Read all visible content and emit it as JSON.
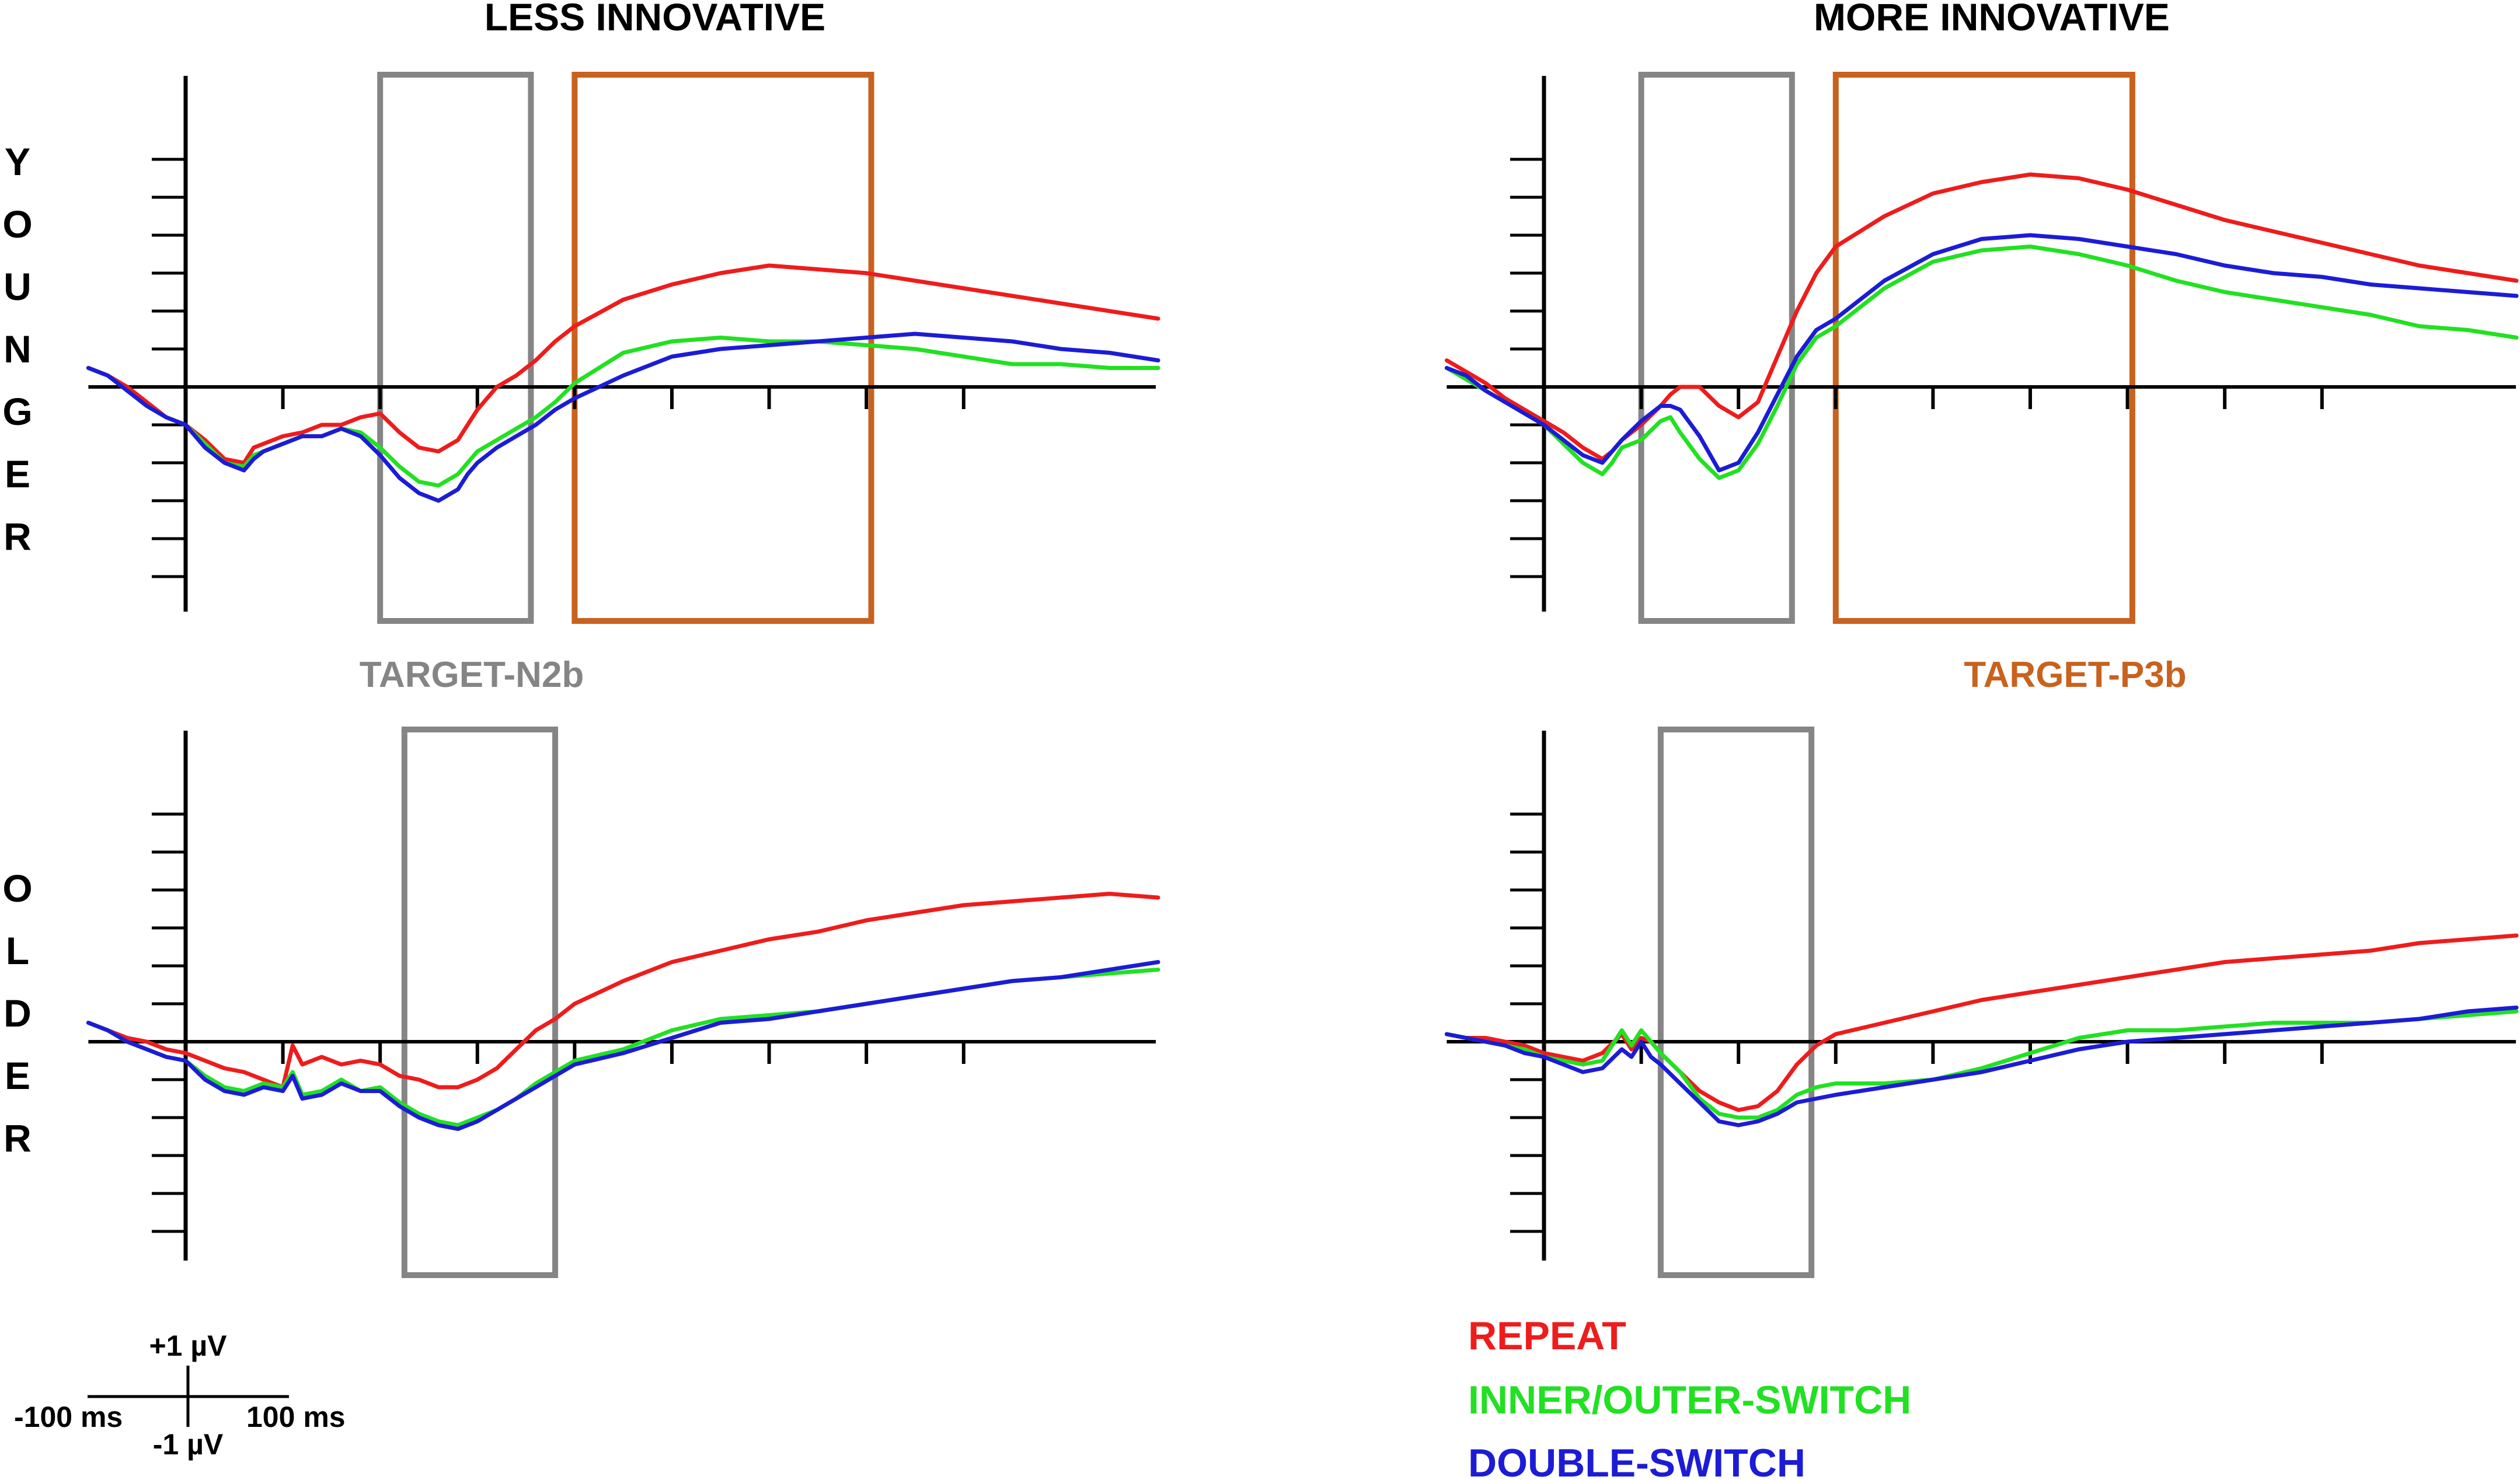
{
  "titles": {
    "left": "LESS INNOVATIVE",
    "right": "MORE INNOVATIVE"
  },
  "row_labels": {
    "younger": "YOUNGER",
    "older": "OLDER"
  },
  "window_labels": {
    "n2b": "TARGET-N2b",
    "p3b": "TARGET-P3b"
  },
  "scale_bar": {
    "top": "+1 µV",
    "bottom": "-1 µV",
    "left": "-100 ms",
    "right": "100 ms"
  },
  "colors": {
    "repeat": "#ee1c1c",
    "inner_outer": "#22e022",
    "double": "#1c1cd6",
    "n2b_box": "#858585",
    "p3b_box": "#c8621e",
    "axis": "#000000"
  },
  "chart_data": [
    {
      "type": "line",
      "panel": "younger-less-innovative",
      "xlabel": "",
      "ylabel": "",
      "x_unit": "ms",
      "y_unit": "µV",
      "xlim": [
        -100,
        1000
      ],
      "ylim": [
        -5.5,
        6.5
      ],
      "grid": false,
      "windows": [
        {
          "label": "TARGET-N2b",
          "x": [
            200,
            355
          ]
        },
        {
          "label": "TARGET-P3b",
          "x": [
            400,
            705
          ]
        }
      ],
      "x": [
        -100,
        -80,
        -60,
        -40,
        -20,
        0,
        20,
        40,
        60,
        70,
        80,
        100,
        120,
        140,
        160,
        180,
        200,
        220,
        240,
        260,
        280,
        290,
        300,
        320,
        340,
        360,
        380,
        400,
        450,
        500,
        550,
        600,
        650,
        700,
        750,
        800,
        850,
        900,
        950,
        1000
      ],
      "series": [
        {
          "name": "REPEAT",
          "values": [
            0.5,
            0.3,
            0.0,
            -0.4,
            -0.8,
            -1.0,
            -1.4,
            -1.9,
            -2.0,
            -1.6,
            -1.5,
            -1.3,
            -1.2,
            -1.0,
            -1.0,
            -0.8,
            -0.7,
            -1.2,
            -1.6,
            -1.7,
            -1.4,
            -1.0,
            -0.6,
            0.0,
            0.3,
            0.7,
            1.2,
            1.6,
            2.3,
            2.7,
            3.0,
            3.2,
            3.1,
            3.0,
            2.8,
            2.6,
            2.4,
            2.2,
            2.0,
            1.8
          ]
        },
        {
          "name": "INNER/OUTER-SWITCH",
          "values": [
            0.5,
            0.3,
            -0.1,
            -0.5,
            -0.8,
            -1.0,
            -1.5,
            -2.0,
            -2.1,
            -1.8,
            -1.7,
            -1.5,
            -1.3,
            -1.3,
            -1.1,
            -1.2,
            -1.6,
            -2.1,
            -2.5,
            -2.6,
            -2.3,
            -2.0,
            -1.7,
            -1.4,
            -1.1,
            -0.8,
            -0.4,
            0.1,
            0.9,
            1.2,
            1.3,
            1.2,
            1.2,
            1.1,
            1.0,
            0.8,
            0.6,
            0.6,
            0.5,
            0.5
          ]
        },
        {
          "name": "DOUBLE-SWITCH",
          "values": [
            0.5,
            0.3,
            -0.1,
            -0.5,
            -0.8,
            -1.0,
            -1.6,
            -2.0,
            -2.2,
            -1.9,
            -1.7,
            -1.5,
            -1.3,
            -1.3,
            -1.1,
            -1.3,
            -1.8,
            -2.4,
            -2.8,
            -3.0,
            -2.7,
            -2.3,
            -2.0,
            -1.6,
            -1.3,
            -1.0,
            -0.6,
            -0.3,
            0.3,
            0.8,
            1.0,
            1.1,
            1.2,
            1.3,
            1.4,
            1.3,
            1.2,
            1.0,
            0.9,
            0.7
          ]
        }
      ]
    },
    {
      "type": "line",
      "panel": "younger-more-innovative",
      "xlabel": "",
      "ylabel": "",
      "x_unit": "ms",
      "y_unit": "µV",
      "xlim": [
        -100,
        1000
      ],
      "ylim": [
        -5.5,
        6.5
      ],
      "grid": false,
      "windows": [
        {
          "label": "TARGET-N2b",
          "x": [
            100,
            255
          ]
        },
        {
          "label": "TARGET-P3b",
          "x": [
            300,
            605
          ]
        }
      ],
      "x": [
        -100,
        -80,
        -60,
        -40,
        -20,
        0,
        20,
        40,
        60,
        70,
        80,
        100,
        120,
        130,
        140,
        160,
        180,
        200,
        220,
        240,
        260,
        280,
        300,
        350,
        400,
        450,
        500,
        550,
        600,
        650,
        700,
        750,
        800,
        850,
        900,
        950,
        1000
      ],
      "series": [
        {
          "name": "REPEAT",
          "values": [
            0.7,
            0.4,
            0.1,
            -0.3,
            -0.6,
            -0.9,
            -1.2,
            -1.6,
            -1.9,
            -1.7,
            -1.4,
            -1.0,
            -0.5,
            -0.2,
            0.0,
            0.0,
            -0.5,
            -0.8,
            -0.4,
            0.8,
            2.0,
            3.0,
            3.7,
            4.5,
            5.1,
            5.4,
            5.6,
            5.5,
            5.2,
            4.8,
            4.4,
            4.1,
            3.8,
            3.5,
            3.2,
            3.0,
            2.8
          ]
        },
        {
          "name": "INNER/OUTER-SWITCH",
          "values": [
            0.5,
            0.2,
            -0.1,
            -0.4,
            -0.7,
            -1.0,
            -1.5,
            -2.0,
            -2.3,
            -2.0,
            -1.6,
            -1.4,
            -0.9,
            -0.8,
            -1.2,
            -1.9,
            -2.4,
            -2.2,
            -1.5,
            -0.5,
            0.6,
            1.3,
            1.6,
            2.6,
            3.3,
            3.6,
            3.7,
            3.5,
            3.2,
            2.8,
            2.5,
            2.3,
            2.1,
            1.9,
            1.6,
            1.5,
            1.3
          ]
        },
        {
          "name": "DOUBLE-SWITCH",
          "values": [
            0.5,
            0.3,
            -0.1,
            -0.4,
            -0.7,
            -1.0,
            -1.4,
            -1.8,
            -2.0,
            -1.7,
            -1.4,
            -0.9,
            -0.5,
            -0.5,
            -0.6,
            -1.3,
            -2.2,
            -2.0,
            -1.2,
            -0.2,
            0.8,
            1.5,
            1.8,
            2.8,
            3.5,
            3.9,
            4.0,
            3.9,
            3.7,
            3.5,
            3.2,
            3.0,
            2.9,
            2.7,
            2.6,
            2.5,
            2.4
          ]
        }
      ]
    },
    {
      "type": "line",
      "panel": "older-less-innovative",
      "xlabel": "",
      "ylabel": "",
      "x_unit": "ms",
      "y_unit": "µV",
      "xlim": [
        -100,
        1000
      ],
      "ylim": [
        -5.5,
        6.5
      ],
      "grid": false,
      "windows": [
        {
          "label": "TARGET-N2b",
          "x": [
            225,
            380
          ]
        }
      ],
      "x": [
        -100,
        -80,
        -60,
        -40,
        -20,
        0,
        20,
        40,
        60,
        80,
        100,
        110,
        120,
        140,
        160,
        180,
        200,
        220,
        240,
        260,
        280,
        300,
        320,
        340,
        360,
        380,
        400,
        450,
        500,
        550,
        600,
        650,
        700,
        750,
        800,
        850,
        900,
        950,
        1000
      ],
      "series": [
        {
          "name": "REPEAT",
          "values": [
            0.5,
            0.3,
            0.1,
            0.0,
            -0.2,
            -0.3,
            -0.5,
            -0.7,
            -0.8,
            -1.0,
            -1.2,
            -0.1,
            -0.6,
            -0.4,
            -0.6,
            -0.5,
            -0.6,
            -0.9,
            -1.0,
            -1.2,
            -1.2,
            -1.0,
            -0.7,
            -0.2,
            0.3,
            0.6,
            1.0,
            1.6,
            2.1,
            2.4,
            2.7,
            2.9,
            3.2,
            3.4,
            3.6,
            3.7,
            3.8,
            3.9,
            3.8
          ]
        },
        {
          "name": "INNER/OUTER-SWITCH",
          "values": [
            0.5,
            0.3,
            0.0,
            -0.2,
            -0.4,
            -0.5,
            -0.9,
            -1.2,
            -1.3,
            -1.1,
            -1.2,
            -0.8,
            -1.4,
            -1.3,
            -1.0,
            -1.3,
            -1.2,
            -1.6,
            -1.9,
            -2.1,
            -2.2,
            -2.0,
            -1.8,
            -1.5,
            -1.1,
            -0.8,
            -0.5,
            -0.2,
            0.3,
            0.6,
            0.7,
            0.8,
            1.0,
            1.2,
            1.4,
            1.6,
            1.7,
            1.8,
            1.9
          ]
        },
        {
          "name": "DOUBLE-SWITCH",
          "values": [
            0.5,
            0.3,
            0.0,
            -0.2,
            -0.4,
            -0.5,
            -1.0,
            -1.3,
            -1.4,
            -1.2,
            -1.3,
            -0.9,
            -1.5,
            -1.4,
            -1.1,
            -1.3,
            -1.3,
            -1.7,
            -2.0,
            -2.2,
            -2.3,
            -2.1,
            -1.8,
            -1.5,
            -1.2,
            -0.9,
            -0.6,
            -0.3,
            0.1,
            0.5,
            0.6,
            0.8,
            1.0,
            1.2,
            1.4,
            1.6,
            1.7,
            1.9,
            2.1
          ]
        }
      ]
    },
    {
      "type": "line",
      "panel": "older-more-innovative",
      "xlabel": "",
      "ylabel": "",
      "x_unit": "ms",
      "y_unit": "µV",
      "xlim": [
        -100,
        1000
      ],
      "ylim": [
        -5.5,
        6.5
      ],
      "grid": false,
      "windows": [
        {
          "label": "TARGET-N2b",
          "x": [
            120,
            275
          ]
        }
      ],
      "x": [
        -100,
        -80,
        -60,
        -40,
        -20,
        0,
        20,
        40,
        60,
        80,
        90,
        100,
        110,
        120,
        140,
        160,
        180,
        200,
        220,
        240,
        260,
        280,
        300,
        350,
        400,
        450,
        500,
        550,
        600,
        650,
        700,
        750,
        800,
        850,
        900,
        950,
        1000
      ],
      "series": [
        {
          "name": "REPEAT",
          "values": [
            0.2,
            0.1,
            0.1,
            0.0,
            -0.1,
            -0.3,
            -0.4,
            -0.5,
            -0.3,
            0.2,
            -0.2,
            0.1,
            0.0,
            -0.3,
            -0.8,
            -1.3,
            -1.6,
            -1.8,
            -1.7,
            -1.3,
            -0.6,
            -0.1,
            0.2,
            0.5,
            0.8,
            1.1,
            1.3,
            1.5,
            1.7,
            1.9,
            2.1,
            2.2,
            2.3,
            2.4,
            2.6,
            2.7,
            2.8
          ]
        },
        {
          "name": "INNER/OUTER-SWITCH",
          "values": [
            0.2,
            0.1,
            0.0,
            -0.1,
            -0.2,
            -0.4,
            -0.5,
            -0.6,
            -0.5,
            0.3,
            -0.1,
            0.3,
            0.0,
            -0.3,
            -0.8,
            -1.5,
            -1.9,
            -2.0,
            -2.0,
            -1.8,
            -1.4,
            -1.2,
            -1.1,
            -1.1,
            -1.0,
            -0.7,
            -0.3,
            0.1,
            0.3,
            0.3,
            0.4,
            0.5,
            0.5,
            0.5,
            0.6,
            0.7,
            0.8
          ]
        },
        {
          "name": "DOUBLE-SWITCH",
          "values": [
            0.2,
            0.1,
            0.0,
            -0.1,
            -0.3,
            -0.4,
            -0.6,
            -0.8,
            -0.7,
            -0.2,
            -0.4,
            0.0,
            -0.4,
            -0.6,
            -1.1,
            -1.6,
            -2.1,
            -2.2,
            -2.1,
            -1.9,
            -1.6,
            -1.5,
            -1.4,
            -1.2,
            -1.0,
            -0.8,
            -0.5,
            -0.2,
            0.0,
            0.1,
            0.2,
            0.3,
            0.4,
            0.5,
            0.6,
            0.8,
            0.9
          ]
        }
      ]
    }
  ]
}
